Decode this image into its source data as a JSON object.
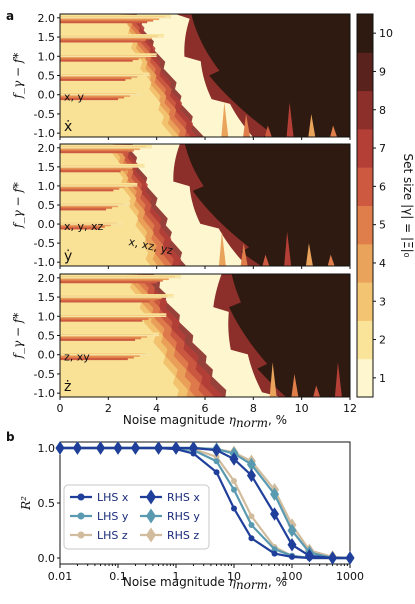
{
  "figure": {
    "panel_a_label": "a",
    "panel_b_label": "b"
  },
  "chart_data": [
    {
      "type": "heatmap",
      "description_label": "panel a",
      "xlabel": "Noise magnitude η_norm, %",
      "xlabel_main": "Noise magnitude ",
      "xlabel_sym": "η",
      "xlabel_sub": "norm",
      "xlabel_tail": ", %",
      "ylabel": "f_γ − f*",
      "xlim": [
        0,
        12
      ],
      "ylim": [
        -1.1,
        2.1
      ],
      "xticks": [
        "0",
        "2",
        "4",
        "6",
        "8",
        "10",
        "12"
      ],
      "yticks": [
        "2.0",
        "1.5",
        "1.0",
        "0.5",
        "0.0",
        "-0.5",
        "-1.0"
      ],
      "colorbar": {
        "label": "Set size |γ| = |Ξ|₀",
        "ticks": [
          "1",
          "2",
          "3",
          "4",
          "5",
          "6",
          "7",
          "8",
          "9",
          "10"
        ],
        "colors": [
          "#fdf6cf",
          "#f9e49a",
          "#f3c572",
          "#eaa35a",
          "#df7d4b",
          "#cd5a40",
          "#b43f37",
          "#8c2e2a",
          "#5a221c",
          "#2e1a10"
        ]
      },
      "subplots": [
        {
          "variable": "ẋ",
          "annotations": [
            "x, y"
          ],
          "band_end_level_1": 4.6,
          "band_end_level_6": 6.0,
          "dark_start": 5.6
        },
        {
          "variable": "ẏ",
          "annotations": [
            "x, y, xz",
            "x, xz, yz"
          ],
          "band_end_level_1": 3.8,
          "band_end_level_6": 5.4,
          "dark_start": 5.2
        },
        {
          "variable": "ż",
          "annotations": [
            "z, xy"
          ],
          "band_end_level_1": 5.0,
          "band_end_level_6": 7.2,
          "dark_start": 7.0
        }
      ]
    },
    {
      "type": "line",
      "xscale": "log",
      "xlabel": "Noise magnitude η_norm, %",
      "ylabel": "R²",
      "xlim": [
        0.01,
        1000
      ],
      "ylim": [
        0,
        1
      ],
      "xticks": [
        "0.01",
        "0.1",
        "1",
        "10",
        "100",
        "1000"
      ],
      "yticks": [
        "0.0",
        "0.5",
        "1.0"
      ],
      "legend_position": "bottom-left",
      "x": [
        0.01,
        0.02,
        0.05,
        0.1,
        0.2,
        0.5,
        1,
        2,
        5,
        10,
        20,
        50,
        100,
        200,
        500,
        1000
      ],
      "series": [
        {
          "name": "LHS x",
          "color": "#1f3f9a",
          "marker": "circle",
          "values": [
            1.0,
            1.0,
            1.0,
            1.0,
            1.0,
            1.0,
            0.99,
            0.95,
            0.78,
            0.45,
            0.18,
            0.04,
            0.01,
            0.0,
            0.0,
            0.0
          ]
        },
        {
          "name": "LHS y",
          "color": "#5a9ab0",
          "marker": "circle",
          "values": [
            1.0,
            1.0,
            1.0,
            1.0,
            1.0,
            1.0,
            1.0,
            0.98,
            0.88,
            0.62,
            0.3,
            0.08,
            0.02,
            0.0,
            0.0,
            0.0
          ]
        },
        {
          "name": "LHS z",
          "color": "#d2bc9e",
          "marker": "circle",
          "values": [
            1.0,
            1.0,
            1.0,
            1.0,
            1.0,
            1.0,
            1.0,
            0.99,
            0.92,
            0.7,
            0.38,
            0.1,
            0.02,
            0.0,
            0.0,
            0.0
          ]
        },
        {
          "name": "RHS x",
          "color": "#1f3f9a",
          "marker": "diamond",
          "values": [
            1.0,
            1.0,
            1.0,
            1.0,
            1.0,
            1.0,
            1.0,
            1.0,
            0.98,
            0.9,
            0.75,
            0.4,
            0.12,
            0.02,
            0.0,
            0.0
          ]
        },
        {
          "name": "RHS y",
          "color": "#5a9ab0",
          "marker": "diamond",
          "values": [
            1.0,
            1.0,
            1.0,
            1.0,
            1.0,
            1.0,
            1.0,
            1.0,
            0.99,
            0.95,
            0.85,
            0.58,
            0.25,
            0.05,
            0.0,
            0.0
          ]
        },
        {
          "name": "RHS z",
          "color": "#d2bc9e",
          "marker": "diamond",
          "values": [
            1.0,
            1.0,
            1.0,
            1.0,
            1.0,
            1.0,
            1.0,
            1.0,
            0.99,
            0.96,
            0.88,
            0.62,
            0.3,
            0.07,
            0.01,
            0.0
          ]
        }
      ]
    }
  ]
}
